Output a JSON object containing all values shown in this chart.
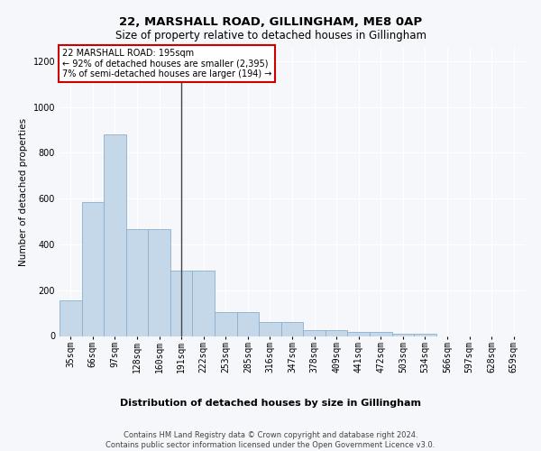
{
  "title": "22, MARSHALL ROAD, GILLINGHAM, ME8 0AP",
  "subtitle": "Size of property relative to detached houses in Gillingham",
  "xlabel": "Distribution of detached houses by size in Gillingham",
  "ylabel": "Number of detached properties",
  "categories": [
    "35sqm",
    "66sqm",
    "97sqm",
    "128sqm",
    "160sqm",
    "191sqm",
    "222sqm",
    "253sqm",
    "285sqm",
    "316sqm",
    "347sqm",
    "378sqm",
    "409sqm",
    "441sqm",
    "472sqm",
    "503sqm",
    "534sqm",
    "566sqm",
    "597sqm",
    "628sqm",
    "659sqm"
  ],
  "values": [
    155,
    585,
    880,
    465,
    465,
    285,
    285,
    105,
    105,
    60,
    60,
    27,
    27,
    17,
    17,
    10,
    10,
    0,
    0,
    0,
    0
  ],
  "bar_color": "#c5d8ea",
  "bar_edge_color": "#8ab0cc",
  "vline_index": 5,
  "vline_color": "#444444",
  "annotation_text_line1": "22 MARSHALL ROAD: 195sqm",
  "annotation_text_line2": "← 92% of detached houses are smaller (2,395)",
  "annotation_text_line3": "7% of semi-detached houses are larger (194) →",
  "annotation_box_facecolor": "#ffffff",
  "annotation_box_edgecolor": "#cc0000",
  "footer_line1": "Contains HM Land Registry data © Crown copyright and database right 2024.",
  "footer_line2": "Contains public sector information licensed under the Open Government Licence v3.0.",
  "ylim": [
    0,
    1260
  ],
  "yticks": [
    0,
    200,
    400,
    600,
    800,
    1000,
    1200
  ],
  "bg_color": "#f5f7fa",
  "grid_color": "#ffffff",
  "title_fontsize": 9.5,
  "subtitle_fontsize": 8.5,
  "xlabel_fontsize": 8,
  "ylabel_fontsize": 7.5,
  "tick_fontsize": 7,
  "annotation_fontsize": 7,
  "footer_fontsize": 6
}
